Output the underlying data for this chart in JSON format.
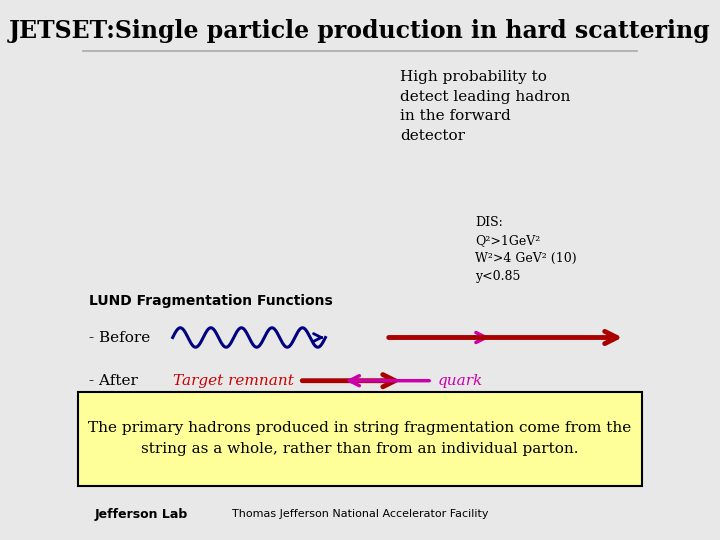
{
  "title": "JETSET:Single particle production in hard scattering",
  "title_fontsize": 17,
  "title_fontweight": "bold",
  "bg_color": "#e8e8e8",
  "main_bg": "#ffffff",
  "text_high_prob": "High probability to\ndetect leading hadron\nin the forward\ndetector",
  "text_dis": "DIS:\nQ²>1GeV²\nW²>4 GeV² (10)\ny<0.85",
  "text_lund": "LUND Fragmentation Functions",
  "text_before": "- Before",
  "text_after": "- After",
  "text_target": "Target remnant",
  "text_quark": "quark",
  "text_bottom": "The primary hadrons produced in string fragmentation come from the\nstring as a whole, rather than from an individual parton.",
  "bottom_box_color": "#ffff99",
  "bottom_box_border": "#000000",
  "footer_text": "Thomas Jefferson National Accelerator Facility",
  "wave_color": "#000080",
  "arrow_dark_red": "#aa0000",
  "arrow_magenta": "#cc00aa",
  "target_text_color": "#cc0000",
  "quark_text_color": "#cc00aa"
}
